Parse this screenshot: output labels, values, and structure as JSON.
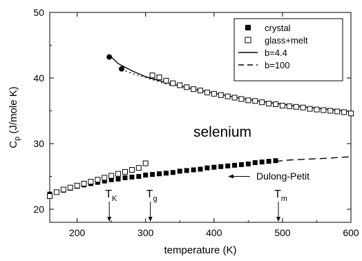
{
  "chart_data": {
    "type": "scatter",
    "xlabel": "temperature (K)",
    "ylabel": {
      "base": "C",
      "sub": "p",
      "rest": " (J/mole K)"
    },
    "xlim": [
      160,
      600
    ],
    "ylim": [
      18,
      50
    ],
    "x_ticks": [
      200,
      300,
      400,
      500,
      600
    ],
    "y_ticks": [
      20,
      30,
      40,
      50
    ],
    "grid": false,
    "legend_position": "top-right",
    "series": [
      {
        "name": "crystal",
        "marker": "filled-square",
        "x": [
          160,
          170,
          180,
          190,
          200,
          210,
          220,
          230,
          240,
          250,
          260,
          270,
          280,
          290,
          300,
          310,
          320,
          330,
          340,
          350,
          360,
          370,
          380,
          390,
          400,
          410,
          420,
          430,
          440,
          450,
          460,
          470,
          480,
          490
        ],
        "y": [
          22.3,
          22.6,
          22.9,
          23.2,
          23.5,
          23.7,
          23.9,
          24.1,
          24.3,
          24.5,
          24.6,
          24.8,
          24.9,
          25.0,
          25.2,
          25.3,
          25.4,
          25.5,
          25.6,
          25.8,
          25.9,
          26.0,
          26.1,
          26.3,
          26.4,
          26.5,
          26.6,
          26.7,
          26.8,
          26.9,
          27.1,
          27.2,
          27.3,
          27.4
        ]
      },
      {
        "name": "glass+melt",
        "marker": "open-square",
        "x": [
          160,
          170,
          180,
          190,
          200,
          210,
          220,
          230,
          240,
          250,
          260,
          270,
          280,
          290,
          300,
          310,
          320,
          330,
          340,
          350,
          360,
          370,
          380,
          390,
          400,
          410,
          420,
          430,
          440,
          450,
          460,
          470,
          480,
          490,
          500,
          510,
          520,
          530,
          540,
          550,
          560,
          570,
          580,
          590,
          600
        ],
        "y": [
          22.0,
          22.6,
          23.0,
          23.3,
          23.6,
          23.9,
          24.2,
          24.5,
          24.8,
          25.1,
          25.4,
          25.7,
          26.0,
          26.3,
          27.0,
          40.4,
          40.1,
          39.6,
          39.2,
          38.9,
          38.6,
          38.3,
          38.1,
          37.8,
          37.6,
          37.4,
          37.2,
          37.0,
          36.8,
          36.6,
          36.5,
          36.3,
          36.1,
          36.0,
          35.8,
          35.7,
          35.6,
          35.5,
          35.3,
          35.2,
          35.1,
          35.0,
          34.9,
          34.8,
          34.6
        ]
      },
      {
        "name": "b=4.4",
        "style": "solid-line",
        "x": [
          247,
          260,
          280,
          300,
          320,
          350,
          380,
          410,
          440,
          470,
          500,
          530,
          560,
          600
        ],
        "y": [
          43.5,
          42.2,
          41.1,
          40.2,
          39.6,
          38.8,
          38.1,
          37.5,
          36.9,
          36.4,
          36.0,
          35.6,
          35.3,
          34.9
        ]
      },
      {
        "name": "b=100",
        "style": "dashed-line",
        "x": [
          490,
          510,
          530,
          550,
          570,
          600
        ],
        "y": [
          27.3,
          27.5,
          27.6,
          27.7,
          27.8,
          28.0
        ]
      },
      {
        "name": "",
        "style": "dotted-line",
        "x": [
          265,
          280,
          300,
          320,
          340
        ],
        "y": [
          41.3,
          40.7,
          40.1,
          39.4,
          38.8
        ]
      },
      {
        "name": "",
        "marker": "filled-circle",
        "x": [
          247,
          265
        ],
        "y": [
          43.2,
          41.4
        ]
      }
    ],
    "annotations": [
      {
        "text": "selenium",
        "role": "label"
      },
      {
        "text": "Dulong-Petit",
        "role": "arrow-label",
        "points_to_y": 25
      },
      {
        "text": "T",
        "sub": "K",
        "points_to_x": 247
      },
      {
        "text": "T",
        "sub": "g",
        "points_to_x": 307
      },
      {
        "text": "T",
        "sub": "m",
        "points_to_x": 494
      }
    ]
  }
}
